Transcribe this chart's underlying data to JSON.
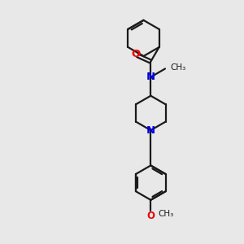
{
  "background_color": "#e8e8e8",
  "bond_color": "#1a1a1a",
  "N_color": "#0000ee",
  "O_color": "#ee0000",
  "font_size": 8.5,
  "linewidth": 1.6,
  "figsize": [
    3.0,
    3.0
  ],
  "dpi": 100,
  "xlim": [
    0,
    6
  ],
  "ylim": [
    0,
    10
  ]
}
